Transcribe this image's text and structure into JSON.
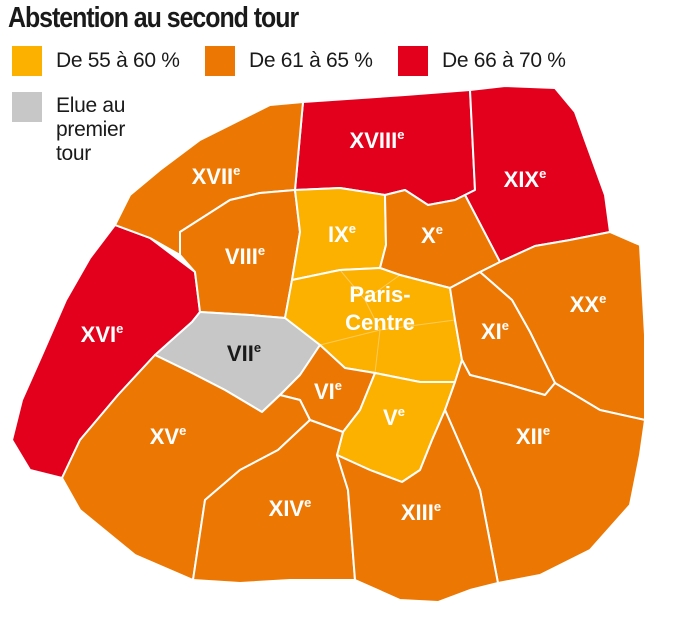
{
  "title": "Abstention au second tour",
  "colors": {
    "range_55_60": "#FCB000",
    "range_61_65": "#EC7702",
    "range_66_70": "#E2001C",
    "elue": "#C7C7C7"
  },
  "legend": [
    {
      "id": "range_55_60",
      "label": "De 55 à 60 %"
    },
    {
      "id": "range_61_65",
      "label": "De 61 à 65 %"
    },
    {
      "id": "range_66_70",
      "label": "De 66 à 70 %"
    },
    {
      "id": "elue",
      "label": "Elue au premier tour"
    }
  ],
  "arrondissements": [
    {
      "id": "xviii",
      "name": "XVIII",
      "sup": "e",
      "category": "range_66_70"
    },
    {
      "id": "xix",
      "name": "XIX",
      "sup": "e",
      "category": "range_66_70"
    },
    {
      "id": "xvi",
      "name": "XVI",
      "sup": "e",
      "category": "range_66_70"
    },
    {
      "id": "xvii",
      "name": "XVII",
      "sup": "e",
      "category": "range_61_65"
    },
    {
      "id": "viii",
      "name": "VIII",
      "sup": "e",
      "category": "range_61_65"
    },
    {
      "id": "ix",
      "name": "IX",
      "sup": "e",
      "category": "range_55_60"
    },
    {
      "id": "x",
      "name": "X",
      "sup": "e",
      "category": "range_61_65"
    },
    {
      "id": "xx",
      "name": "XX",
      "sup": "e",
      "category": "range_61_65"
    },
    {
      "id": "paris-centre",
      "name": "Paris-Centre",
      "lines": [
        "Paris-",
        "Centre"
      ],
      "sup": "",
      "category": "range_55_60"
    },
    {
      "id": "xi",
      "name": "XI",
      "sup": "e",
      "category": "range_61_65"
    },
    {
      "id": "vii",
      "name": "VII",
      "sup": "e",
      "category": "elue"
    },
    {
      "id": "vi",
      "name": "VI",
      "sup": "e",
      "category": "range_61_65"
    },
    {
      "id": "v",
      "name": "V",
      "sup": "e",
      "category": "range_55_60"
    },
    {
      "id": "xii",
      "name": "XII",
      "sup": "e",
      "category": "range_61_65"
    },
    {
      "id": "xv",
      "name": "XV",
      "sup": "e",
      "category": "range_61_65"
    },
    {
      "id": "xiv",
      "name": "XIV",
      "sup": "e",
      "category": "range_61_65"
    },
    {
      "id": "xiii",
      "name": "XIII",
      "sup": "e",
      "category": "range_61_65"
    }
  ]
}
